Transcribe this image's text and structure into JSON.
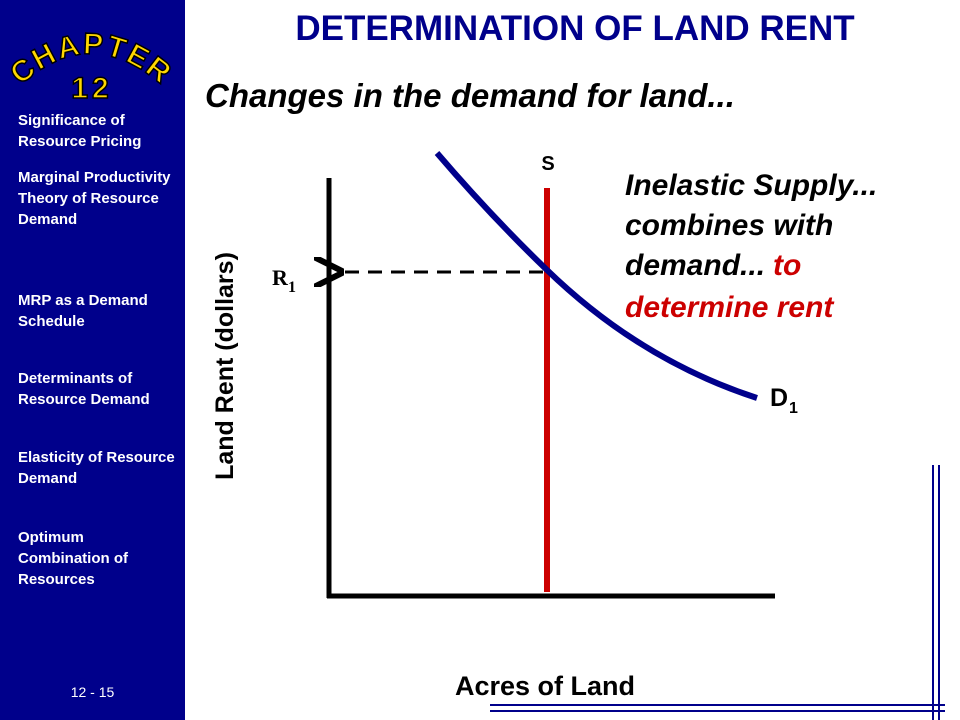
{
  "sidebar": {
    "chapter": "CHAPTER",
    "chapter_number": "12",
    "topics": [
      "Significance of Resource Pricing",
      "Marginal Productivity Theory of Resource Demand",
      "MRP as a Demand Schedule",
      "Determinants of Resource Demand",
      "Elasticity of Resource Demand",
      "Optimum Combination of Resources"
    ],
    "page": "12 - 15"
  },
  "header": {
    "title": "DETERMINATION OF LAND RENT",
    "subtitle": "Changes in the demand for land..."
  },
  "diagram": {
    "y_label": "Land Rent (dollars)",
    "x_label": "Acres of Land",
    "supply_label": "S",
    "demand_label": "D",
    "demand_subscript": "1",
    "rent_label": "R",
    "rent_subscript": "1",
    "annotation": {
      "line1": "Inelastic Supply...",
      "line2": "combines with",
      "line3": "demand...",
      "highlight1": "to",
      "highlight2": "determine rent"
    }
  }
}
